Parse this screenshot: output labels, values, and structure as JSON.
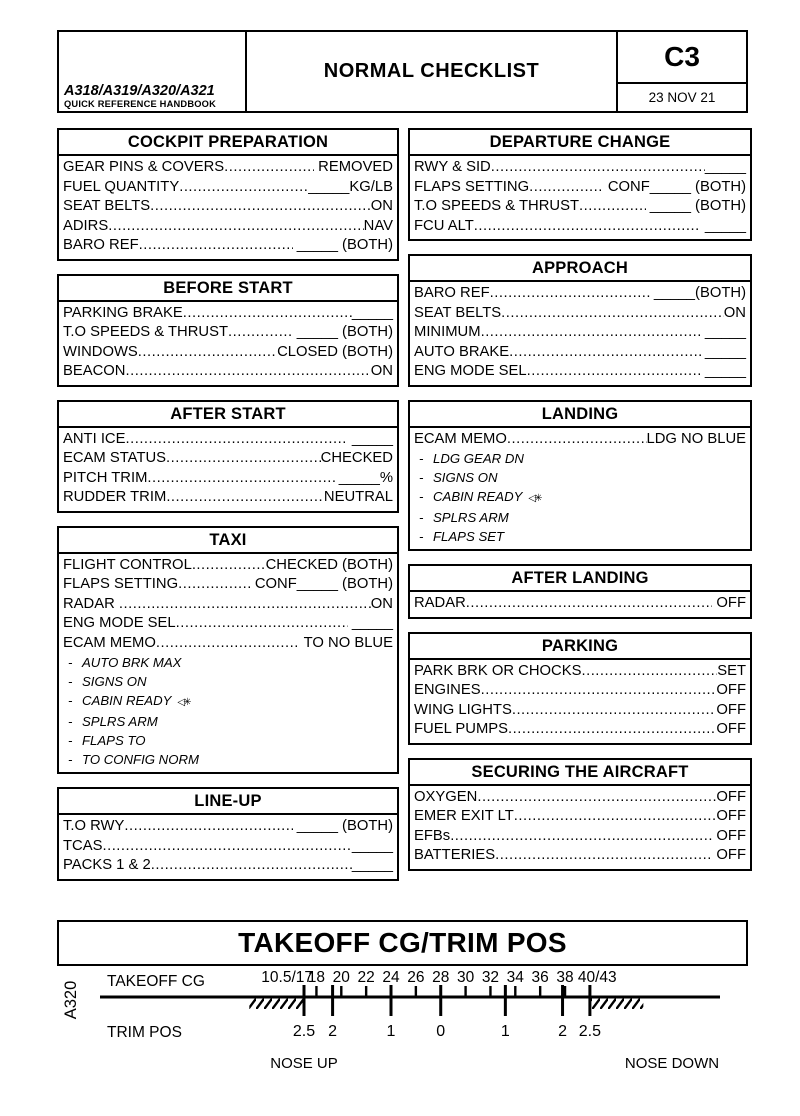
{
  "header": {
    "brand_line1": "A318/A319/A320/A321",
    "brand_line2": "QUICK REFERENCE HANDBOOK",
    "title": "NORMAL CHECKLIST",
    "page_code": "C3",
    "date": "23 NOV 21"
  },
  "sections_left": [
    {
      "title": "COCKPIT PREPARATION",
      "items": [
        {
          "label": "GEAR PINS & COVERS",
          "value": " REMOVED"
        },
        {
          "label": "FUEL QUANTITY",
          "value": "_____KG/LB"
        },
        {
          "label": "SEAT BELTS",
          "value": "ON"
        },
        {
          "label": "ADIRS",
          "value": "NAV"
        },
        {
          "label": "BARO REF",
          "value": " _____ (BOTH)"
        }
      ]
    },
    {
      "title": "BEFORE START",
      "items": [
        {
          "label": "PARKING BRAKE",
          "value": "_____"
        },
        {
          "label": "T.O SPEEDS & THRUST",
          "value": " _____ (BOTH)"
        },
        {
          "label": "WINDOWS",
          "value": "CLOSED (BOTH)"
        },
        {
          "label": "BEACON",
          "value": "ON"
        }
      ]
    },
    {
      "title": "AFTER START",
      "items": [
        {
          "label": "ANTI ICE",
          "value": " _____"
        },
        {
          "label": "ECAM STATUS",
          "value": "CHECKED"
        },
        {
          "label": "PITCH TRIM",
          "value": " _____%"
        },
        {
          "label": "RUDDER TRIM",
          "value": "NEUTRAL"
        }
      ]
    },
    {
      "title": "TAXI",
      "items": [
        {
          "label": "FLIGHT CONTROL",
          "value": "CHECKED (BOTH)"
        },
        {
          "label": "FLAPS SETTING",
          "value": " CONF_____ (BOTH)"
        },
        {
          "label": "RADAR ",
          "value": "ON"
        },
        {
          "label": "ENG MODE SEL",
          "value": " _____"
        },
        {
          "label": "ECAM MEMO",
          "value": " TO NO BLUE",
          "sub": [
            {
              "text": "AUTO BRK MAX"
            },
            {
              "text": "SIGNS ON"
            },
            {
              "text": "CABIN READY",
              "symbol": "◁✳"
            },
            {
              "text": "SPLRS ARM"
            },
            {
              "text": "FLAPS TO"
            },
            {
              "text": "TO CONFIG NORM"
            }
          ]
        }
      ]
    },
    {
      "title": "LINE-UP",
      "items": [
        {
          "label": "T.O RWY",
          "value": " _____ (BOTH)"
        },
        {
          "label": "TCAS",
          "value": "_____"
        },
        {
          "label": "PACKS 1 & 2",
          "value": "_____"
        }
      ]
    }
  ],
  "sections_right": [
    {
      "title": "DEPARTURE CHANGE",
      "items": [
        {
          "label": "RWY & SID",
          "value": "_____"
        },
        {
          "label": "FLAPS SETTING",
          "value": " CONF_____ (BOTH)"
        },
        {
          "label": "T.O SPEEDS & THRUST",
          "value": " _____ (BOTH)"
        },
        {
          "label": "FCU ALT",
          "value": " _____"
        }
      ]
    },
    {
      "title": "APPROACH",
      "items": [
        {
          "label": "BARO REF",
          "value": " _____(BOTH)"
        },
        {
          "label": "SEAT BELTS",
          "value": "ON"
        },
        {
          "label": "MINIMUM",
          "value": " _____"
        },
        {
          "label": "AUTO BRAKE",
          "value": " _____"
        },
        {
          "label": "ENG MODE SEL",
          "value": " _____"
        }
      ]
    },
    {
      "title": "LANDING",
      "items": [
        {
          "label": "ECAM MEMO",
          "value": "LDG NO BLUE",
          "sub": [
            {
              "text": "LDG GEAR DN"
            },
            {
              "text": "SIGNS ON"
            },
            {
              "text": "CABIN READY",
              "symbol": "◁✳"
            },
            {
              "text": "SPLRS ARM"
            },
            {
              "text": "FLAPS SET"
            }
          ]
        }
      ]
    },
    {
      "title": "AFTER LANDING",
      "items": [
        {
          "label": "RADAR",
          "value": " OFF"
        }
      ]
    },
    {
      "title": "PARKING",
      "items": [
        {
          "label": "PARK BRK OR CHOCKS",
          "value": "SET"
        },
        {
          "label": "ENGINES",
          "value": "OFF"
        },
        {
          "label": "WING LIGHTS",
          "value": "OFF"
        },
        {
          "label": "FUEL PUMPS",
          "value": "OFF"
        }
      ]
    },
    {
      "title": "SECURING THE AIRCRAFT",
      "items": [
        {
          "label": "OXYGEN",
          "value": "OFF"
        },
        {
          "label": "EMER EXIT LT",
          "value": "OFF"
        },
        {
          "label": "EFBs",
          "value": " OFF"
        },
        {
          "label": "BATTERIES",
          "value": " OFF"
        }
      ]
    }
  ],
  "takeoff_title": "TAKEOFF CG/TRIM POS",
  "chart_data": {
    "type": "scale",
    "title": "TAKEOFF CG/TRIM POS",
    "aircraft_label": "A320",
    "top_axis_label": "TAKEOFF CG",
    "bottom_axis_label": "TRIM POS",
    "nose_up_label": "NOSE UP",
    "nose_down_label": "NOSE DOWN",
    "cg_ticks": [
      {
        "label": "10.5/17",
        "cg": 17,
        "anchor": "end"
      },
      {
        "label": "18",
        "cg": 18
      },
      {
        "label": "20",
        "cg": 20
      },
      {
        "label": "22",
        "cg": 22
      },
      {
        "label": "24",
        "cg": 24
      },
      {
        "label": "26",
        "cg": 26
      },
      {
        "label": "28",
        "cg": 28
      },
      {
        "label": "30",
        "cg": 30
      },
      {
        "label": "32",
        "cg": 32
      },
      {
        "label": "34",
        "cg": 34
      },
      {
        "label": "36",
        "cg": 36
      },
      {
        "label": "38",
        "cg": 38
      },
      {
        "label": "40/43",
        "cg": 40,
        "anchor": "start"
      }
    ],
    "trim_ticks": [
      {
        "label": "2.5",
        "cg": 17
      },
      {
        "label": "2",
        "cg": 19.3
      },
      {
        "label": "1",
        "cg": 24
      },
      {
        "label": "0",
        "cg": 28
      },
      {
        "label": "1",
        "cg": 33.2
      },
      {
        "label": "2",
        "cg": 37.8
      },
      {
        "label": "2.5",
        "cg": 40
      }
    ],
    "hatched_cg_ranges": [
      [
        12.6,
        17
      ],
      [
        40,
        44.3
      ]
    ],
    "axis": {
      "cg_min": 10.5,
      "cg_max": 43,
      "grid": false
    }
  }
}
